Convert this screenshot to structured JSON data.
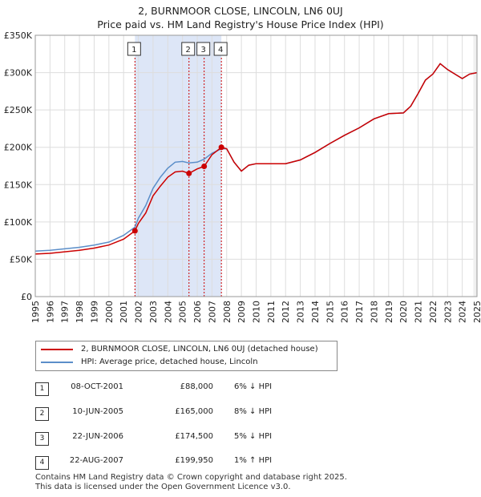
{
  "title": "2, BURNMOOR CLOSE, LINCOLN, LN6 0UJ",
  "subtitle": "Price paid vs. HM Land Registry's House Price Index (HPI)",
  "legend": {
    "property_label": "2, BURNMOOR CLOSE, LINCOLN, LN6 0UJ (detached house)",
    "hpi_label": "HPI: Average price, detached house, Lincoln"
  },
  "colors": {
    "property": "#cc0000",
    "hpi": "#5b8ec9",
    "shade": "#dde6f7",
    "grid": "#dddddd",
    "vline": "#cc0000"
  },
  "sales": [
    {
      "num": "1",
      "date": "08-OCT-2001",
      "price": "£88,000",
      "hpi": "6% ↓ HPI"
    },
    {
      "num": "2",
      "date": "10-JUN-2005",
      "price": "£165,000",
      "hpi": "8% ↓ HPI"
    },
    {
      "num": "3",
      "date": "22-JUN-2006",
      "price": "£174,500",
      "hpi": "5% ↓ HPI"
    },
    {
      "num": "4",
      "date": "22-AUG-2007",
      "price": "£199,950",
      "hpi": "1% ↑ HPI"
    }
  ],
  "footer": {
    "line1": "Contains HM Land Registry data © Crown copyright and database right 2025.",
    "line2": "This data is licensed under the Open Government Licence v3.0."
  },
  "chart_data": {
    "type": "line",
    "title": "2, BURNMOOR CLOSE, LINCOLN, LN6 0UJ",
    "subtitle": "Price paid vs. HM Land Registry's House Price Index (HPI)",
    "xlim": [
      1995,
      2025
    ],
    "ylim": [
      0,
      350000
    ],
    "x_ticks": [
      "1995",
      "1996",
      "1997",
      "1998",
      "1999",
      "2000",
      "2001",
      "2002",
      "2003",
      "2004",
      "2005",
      "2006",
      "2007",
      "2008",
      "2009",
      "2010",
      "2011",
      "2012",
      "2013",
      "2014",
      "2015",
      "2016",
      "2017",
      "2018",
      "2019",
      "2020",
      "2021",
      "2022",
      "2023",
      "2024",
      "2025"
    ],
    "y_ticks": [
      {
        "value": 0,
        "label": "£0"
      },
      {
        "value": 50000,
        "label": "£50K"
      },
      {
        "value": 100000,
        "label": "£100K"
      },
      {
        "value": 150000,
        "label": "£150K"
      },
      {
        "value": 200000,
        "label": "£200K"
      },
      {
        "value": 250000,
        "label": "£250K"
      },
      {
        "value": 300000,
        "label": "£300K"
      },
      {
        "value": 350000,
        "label": "£350K"
      }
    ],
    "shaded_range": [
      2001.77,
      2007.64
    ],
    "sale_markers": [
      {
        "label": "1",
        "x": 2001.77,
        "y": 88000
      },
      {
        "label": "2",
        "x": 2005.44,
        "y": 165000
      },
      {
        "label": "3",
        "x": 2006.47,
        "y": 174500
      },
      {
        "label": "4",
        "x": 2007.64,
        "y": 199950
      }
    ],
    "series": [
      {
        "name": "HPI: Average price, detached house, Lincoln",
        "x": [
          1995,
          1996,
          1997,
          1998,
          1999,
          2000,
          2001,
          2001.77,
          2002,
          2002.5,
          2003,
          2003.5,
          2004,
          2004.5,
          2005,
          2005.44,
          2006,
          2006.47,
          2007,
          2007.64,
          2008,
          2008.5,
          2009,
          2009.5,
          2010,
          2011,
          2012,
          2013,
          2014,
          2015,
          2016,
          2017,
          2018,
          2019,
          2020,
          2020.5,
          2021,
          2021.5,
          2022,
          2022.5,
          2023,
          2023.5,
          2024,
          2024.5,
          2025
        ],
        "values": [
          61000,
          62000,
          64000,
          66000,
          69000,
          73000,
          82000,
          93000,
          105000,
          122000,
          145000,
          160000,
          172000,
          180000,
          181000,
          179000,
          180000,
          184000,
          192000,
          198000,
          198000,
          180000,
          168000,
          176000,
          178000,
          178000,
          178000,
          183000,
          193000,
          205000,
          216000,
          226000,
          238000,
          245000,
          246000,
          255000,
          272000,
          290000,
          298000,
          312000,
          304000,
          298000,
          292000,
          298000,
          300000
        ]
      },
      {
        "name": "2, BURNMOOR CLOSE, LINCOLN, LN6 0UJ (detached house)",
        "x": [
          1995,
          1996,
          1997,
          1998,
          1999,
          2000,
          2001,
          2001.77,
          2002,
          2002.5,
          2003,
          2003.5,
          2004,
          2004.5,
          2005,
          2005.44,
          2006,
          2006.47,
          2007,
          2007.64,
          2008,
          2008.5,
          2009,
          2009.5,
          2010,
          2011,
          2012,
          2013,
          2014,
          2015,
          2016,
          2017,
          2018,
          2019,
          2020,
          2020.5,
          2021,
          2021.5,
          2022,
          2022.5,
          2023,
          2023.5,
          2024,
          2024.5,
          2025
        ],
        "values": [
          57000,
          58000,
          60000,
          62000,
          65000,
          69000,
          77000,
          88000,
          98000,
          112000,
          135000,
          148000,
          160000,
          167000,
          168000,
          165000,
          171000,
          174500,
          190000,
          199950,
          198000,
          180000,
          168000,
          176000,
          178000,
          178000,
          178000,
          183000,
          193000,
          205000,
          216000,
          226000,
          238000,
          245000,
          246000,
          255000,
          272000,
          290000,
          298000,
          312000,
          304000,
          298000,
          292000,
          298000,
          300000
        ]
      }
    ]
  }
}
